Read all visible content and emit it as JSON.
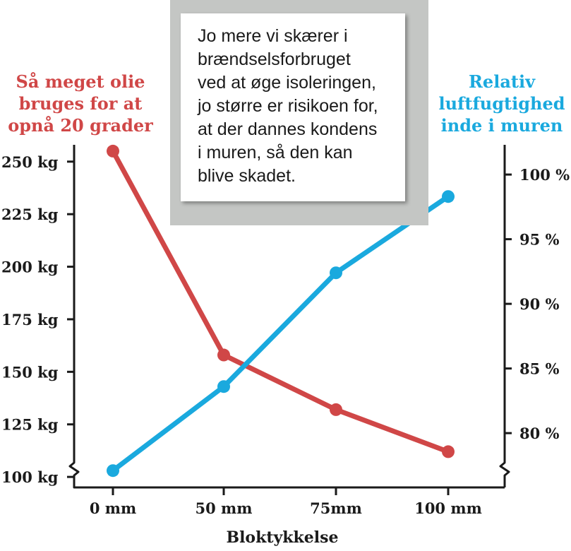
{
  "chart_data": {
    "type": "line",
    "title_left": "Så meget olie bruges for at opnå 20 grader",
    "title_right": "Relativ luftfugtighed inde i muren",
    "annotation": "Jo mere vi skærer i\nbrændselsforbruget\nved at øge isoleringen,\njo større er risikoen for,\nat der dannes kondens\ni muren, så den kan\nblive skadet.",
    "xlabel": "Bloktykkelse",
    "categories": [
      "0 mm",
      "50 mm",
      "75mm",
      "100 mm"
    ],
    "y_left": {
      "ticks": [
        250,
        225,
        200,
        175,
        150,
        125,
        100
      ],
      "tick_labels": [
        "250 kg",
        "225 kg",
        "200 kg",
        "175 kg",
        "150 kg",
        "125 kg",
        "100 kg"
      ],
      "range": [
        95,
        258
      ],
      "axis_break": true
    },
    "y_right": {
      "ticks": [
        100,
        95,
        90,
        85,
        80
      ],
      "tick_labels": [
        "100 %",
        "95 %",
        "90 %",
        "85 %",
        "80 %"
      ],
      "range": [
        75.8,
        102.3
      ],
      "axis_break": true
    },
    "series": [
      {
        "axis": "left",
        "color": "#d04747",
        "values": [
          255,
          158,
          132,
          112
        ]
      },
      {
        "axis": "right",
        "color": "#1aa9de",
        "values": [
          77.1,
          83.6,
          92.4,
          98.3
        ]
      }
    ]
  }
}
